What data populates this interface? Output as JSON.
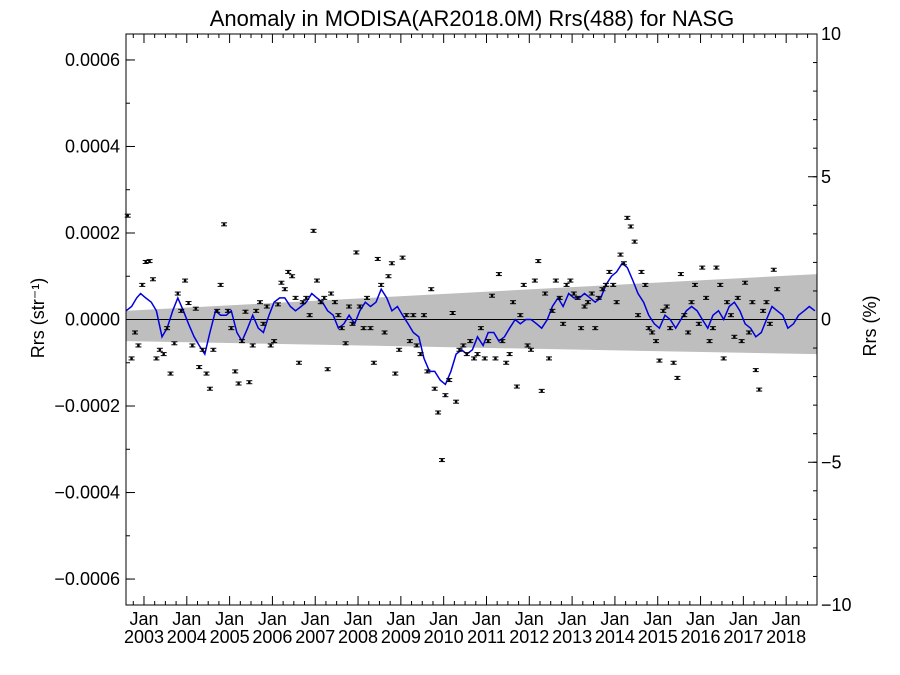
{
  "chart_data": {
    "type": "scatter",
    "title": "Anomaly in MODISA(AR2018.0M) Rrs(488) for NASG",
    "ylabel_left": "Rrs (str⁻¹)",
    "ylabel_right": "Rrs (%)",
    "ylim_left": [
      -0.00066,
      0.00066
    ],
    "ylim_right": [
      -10,
      10
    ],
    "xlim": [
      2002.58,
      2018.72
    ],
    "y_ticks_left": [
      {
        "value": 0.0006,
        "label": "0.0006"
      },
      {
        "value": 0.0004,
        "label": "0.0004"
      },
      {
        "value": 0.0002,
        "label": "0.0002"
      },
      {
        "value": 0.0,
        "label": "0.0000"
      },
      {
        "value": -0.0002,
        "label": "−0.0002"
      },
      {
        "value": -0.0004,
        "label": "−0.0004"
      },
      {
        "value": -0.0006,
        "label": "−0.0006"
      }
    ],
    "y_ticks_right": [
      {
        "value": 10,
        "label": "10"
      },
      {
        "value": 5,
        "label": "5"
      },
      {
        "value": 0,
        "label": "0"
      },
      {
        "value": -5,
        "label": "−5"
      },
      {
        "value": -10,
        "label": "−10"
      }
    ],
    "x_ticks": [
      {
        "value": 2003.0,
        "label": "Jan",
        "year": "2003"
      },
      {
        "value": 2004.0,
        "label": "Jan",
        "year": "2004"
      },
      {
        "value": 2005.0,
        "label": "Jan",
        "year": "2005"
      },
      {
        "value": 2006.0,
        "label": "Jan",
        "year": "2006"
      },
      {
        "value": 2007.0,
        "label": "Jan",
        "year": "2007"
      },
      {
        "value": 2008.0,
        "label": "Jan",
        "year": "2008"
      },
      {
        "value": 2009.0,
        "label": "Jan",
        "year": "2009"
      },
      {
        "value": 2010.0,
        "label": "Jan",
        "year": "2010"
      },
      {
        "value": 2011.0,
        "label": "Jan",
        "year": "2011"
      },
      {
        "value": 2012.0,
        "label": "Jan",
        "year": "2012"
      },
      {
        "value": 2013.0,
        "label": "Jan",
        "year": "2013"
      },
      {
        "value": 2014.0,
        "label": "Jan",
        "year": "2014"
      },
      {
        "value": 2015.0,
        "label": "Jan",
        "year": "2015"
      },
      {
        "value": 2016.0,
        "label": "Jan",
        "year": "2016"
      },
      {
        "value": 2017.0,
        "label": "Jan",
        "year": "2017"
      },
      {
        "value": 2018.0,
        "label": "Jan",
        "year": "2018"
      }
    ],
    "uncertainty_band": {
      "x": [
        2002.58,
        2018.72
      ],
      "upper": [
        2e-05,
        0.000105
      ],
      "lower": [
        -5e-05,
        -8e-05
      ],
      "color": "#bebebe"
    },
    "zero_line": 0.0,
    "points_color": "#000000",
    "line_color": "#0000dd",
    "points": [
      [
        2002.62,
        0.00024
      ],
      [
        2002.71,
        -9e-05
      ],
      [
        2002.79,
        -3e-05
      ],
      [
        2002.87,
        -6e-05
      ],
      [
        2002.96,
        8e-05
      ],
      [
        2003.04,
        0.000133
      ],
      [
        2003.13,
        0.000135
      ],
      [
        2003.21,
        9.3e-05
      ],
      [
        2003.29,
        -9e-05
      ],
      [
        2003.37,
        -7e-05
      ],
      [
        2003.46,
        -8e-05
      ],
      [
        2003.54,
        -2e-05
      ],
      [
        2003.62,
        -0.000125
      ],
      [
        2003.71,
        -5.5e-05
      ],
      [
        2003.79,
        6e-05
      ],
      [
        2003.87,
        2e-05
      ],
      [
        2003.96,
        9e-05
      ],
      [
        2004.04,
        3.8e-05
      ],
      [
        2004.13,
        -6e-05
      ],
      [
        2004.21,
        2.5e-05
      ],
      [
        2004.29,
        -0.00011
      ],
      [
        2004.37,
        -7e-05
      ],
      [
        2004.46,
        -0.000125
      ],
      [
        2004.54,
        -0.00016
      ],
      [
        2004.62,
        -7e-05
      ],
      [
        2004.71,
        2e-05
      ],
      [
        2004.79,
        8e-05
      ],
      [
        2004.87,
        0.00022
      ],
      [
        2004.96,
        2e-05
      ],
      [
        2005.04,
        -2e-05
      ],
      [
        2005.13,
        -0.00012
      ],
      [
        2005.21,
        -0.000148
      ],
      [
        2005.29,
        -5e-05
      ],
      [
        2005.37,
        1.8e-05
      ],
      [
        2005.46,
        -0.000145
      ],
      [
        2005.54,
        -6e-05
      ],
      [
        2005.62,
        2e-05
      ],
      [
        2005.71,
        4e-05
      ],
      [
        2005.79,
        -1e-05
      ],
      [
        2005.87,
        3e-05
      ],
      [
        2005.96,
        -6e-05
      ],
      [
        2006.04,
        -5e-05
      ],
      [
        2006.13,
        3.5e-05
      ],
      [
        2006.21,
        8.5e-05
      ],
      [
        2006.29,
        7e-05
      ],
      [
        2006.37,
        0.00011
      ],
      [
        2006.46,
        0.0001
      ],
      [
        2006.54,
        5e-05
      ],
      [
        2006.62,
        -0.0001
      ],
      [
        2006.71,
        4e-05
      ],
      [
        2006.79,
        5e-05
      ],
      [
        2006.87,
        1e-05
      ],
      [
        2006.96,
        0.000205
      ],
      [
        2007.04,
        9e-05
      ],
      [
        2007.13,
        4e-05
      ],
      [
        2007.21,
        5e-05
      ],
      [
        2007.29,
        -0.000115
      ],
      [
        2007.37,
        6e-05
      ],
      [
        2007.46,
        4e-05
      ],
      [
        2007.54,
        1e-05
      ],
      [
        2007.62,
        -2e-05
      ],
      [
        2007.71,
        -5.5e-05
      ],
      [
        2007.79,
        3e-05
      ],
      [
        2007.87,
        -1e-05
      ],
      [
        2007.96,
        0.000155
      ],
      [
        2008.04,
        3e-05
      ],
      [
        2008.13,
        -2e-05
      ],
      [
        2008.21,
        5e-05
      ],
      [
        2008.29,
        -2e-05
      ],
      [
        2008.37,
        -0.0001
      ],
      [
        2008.46,
        0.00014
      ],
      [
        2008.54,
        8e-05
      ],
      [
        2008.62,
        -3e-05
      ],
      [
        2008.71,
        0.0001
      ],
      [
        2008.79,
        0.00013
      ],
      [
        2008.87,
        -0.000125
      ],
      [
        2008.96,
        -7e-05
      ],
      [
        2009.04,
        0.000143
      ],
      [
        2009.13,
        1e-05
      ],
      [
        2009.21,
        -5e-05
      ],
      [
        2009.29,
        1e-05
      ],
      [
        2009.37,
        -6e-05
      ],
      [
        2009.46,
        -8e-05
      ],
      [
        2009.54,
        1e-05
      ],
      [
        2009.62,
        -0.00012
      ],
      [
        2009.71,
        7e-05
      ],
      [
        2009.79,
        -0.00016
      ],
      [
        2009.87,
        -0.000215
      ],
      [
        2009.96,
        -0.000325
      ],
      [
        2010.04,
        -0.000175
      ],
      [
        2010.13,
        -0.00014
      ],
      [
        2010.21,
        1.5e-05
      ],
      [
        2010.29,
        -0.00019
      ],
      [
        2010.37,
        -7e-05
      ],
      [
        2010.46,
        -6e-05
      ],
      [
        2010.54,
        -8e-05
      ],
      [
        2010.62,
        -5e-05
      ],
      [
        2010.71,
        -9e-05
      ],
      [
        2010.79,
        -8e-05
      ],
      [
        2010.87,
        -2e-05
      ],
      [
        2010.96,
        -9e-05
      ],
      [
        2011.04,
        -5e-05
      ],
      [
        2011.13,
        5.5e-05
      ],
      [
        2011.21,
        -9e-05
      ],
      [
        2011.29,
        0.000105
      ],
      [
        2011.37,
        -5e-05
      ],
      [
        2011.46,
        -0.0001
      ],
      [
        2011.54,
        -8e-05
      ],
      [
        2011.62,
        4e-05
      ],
      [
        2011.71,
        -0.000155
      ],
      [
        2011.79,
        1e-05
      ],
      [
        2011.87,
        8e-05
      ],
      [
        2011.96,
        -6e-05
      ],
      [
        2012.04,
        -7e-05
      ],
      [
        2012.13,
        9e-05
      ],
      [
        2012.21,
        0.000135
      ],
      [
        2012.29,
        -0.000165
      ],
      [
        2012.37,
        6e-05
      ],
      [
        2012.46,
        -9e-05
      ],
      [
        2012.54,
        2e-05
      ],
      [
        2012.62,
        9e-05
      ],
      [
        2012.71,
        5e-05
      ],
      [
        2012.79,
        -1e-05
      ],
      [
        2012.87,
        8e-05
      ],
      [
        2012.96,
        9e-05
      ],
      [
        2013.04,
        6e-05
      ],
      [
        2013.13,
        5e-05
      ],
      [
        2013.21,
        -2e-05
      ],
      [
        2013.29,
        3e-05
      ],
      [
        2013.37,
        4e-05
      ],
      [
        2013.46,
        6e-05
      ],
      [
        2013.54,
        -2e-05
      ],
      [
        2013.62,
        5e-05
      ],
      [
        2013.71,
        7e-05
      ],
      [
        2013.79,
        8e-05
      ],
      [
        2013.87,
        0.00011
      ],
      [
        2013.96,
        8e-05
      ],
      [
        2014.04,
        4e-05
      ],
      [
        2014.13,
        0.00015
      ],
      [
        2014.21,
        0.00013
      ],
      [
        2014.29,
        0.000235
      ],
      [
        2014.37,
        0.000215
      ],
      [
        2014.46,
        0.00018
      ],
      [
        2014.54,
        1e-05
      ],
      [
        2014.62,
        0.00011
      ],
      [
        2014.71,
        8e-05
      ],
      [
        2014.79,
        -2e-05
      ],
      [
        2014.87,
        -3e-05
      ],
      [
        2014.96,
        -5e-05
      ],
      [
        2015.04,
        -9.5e-05
      ],
      [
        2015.13,
        2e-05
      ],
      [
        2015.21,
        3e-05
      ],
      [
        2015.29,
        -2e-05
      ],
      [
        2015.37,
        -0.0001
      ],
      [
        2015.46,
        -0.000135
      ],
      [
        2015.54,
        0.000105
      ],
      [
        2015.62,
        1e-05
      ],
      [
        2015.71,
        -3e-05
      ],
      [
        2015.79,
        4e-05
      ],
      [
        2015.87,
        8e-05
      ],
      [
        2015.96,
        -1e-05
      ],
      [
        2016.04,
        0.00012
      ],
      [
        2016.13,
        5e-05
      ],
      [
        2016.21,
        -5e-05
      ],
      [
        2016.29,
        -2e-05
      ],
      [
        2016.37,
        0.00012
      ],
      [
        2016.46,
        8e-05
      ],
      [
        2016.54,
        -9e-05
      ],
      [
        2016.62,
        4e-05
      ],
      [
        2016.71,
        1e-05
      ],
      [
        2016.79,
        -4e-05
      ],
      [
        2016.87,
        5e-05
      ],
      [
        2016.96,
        -5e-05
      ],
      [
        2017.04,
        8.5e-05
      ],
      [
        2017.13,
        -3e-05
      ],
      [
        2017.21,
        4e-05
      ],
      [
        2017.29,
        -0.000117
      ],
      [
        2017.37,
        -0.000162
      ],
      [
        2017.46,
        2e-05
      ],
      [
        2017.54,
        4e-05
      ],
      [
        2017.62,
        -1e-05
      ],
      [
        2017.71,
        0.000115
      ],
      [
        2017.79,
        7e-05
      ]
    ],
    "line": [
      [
        2002.58,
        2e-05
      ],
      [
        2002.71,
        3e-05
      ],
      [
        2002.83,
        5e-05
      ],
      [
        2002.92,
        6e-05
      ],
      [
        2003.04,
        5e-05
      ],
      [
        2003.17,
        4e-05
      ],
      [
        2003.29,
        2e-05
      ],
      [
        2003.42,
        -4e-05
      ],
      [
        2003.54,
        -2e-05
      ],
      [
        2003.67,
        2e-05
      ],
      [
        2003.79,
        5e-05
      ],
      [
        2003.92,
        2e-05
      ],
      [
        2004.04,
        -1e-05
      ],
      [
        2004.17,
        -4e-05
      ],
      [
        2004.29,
        -6e-05
      ],
      [
        2004.42,
        -8e-05
      ],
      [
        2004.54,
        -3e-05
      ],
      [
        2004.67,
        2e-05
      ],
      [
        2004.79,
        1e-05
      ],
      [
        2004.92,
        1e-05
      ],
      [
        2005.04,
        2e-05
      ],
      [
        2005.17,
        -3e-05
      ],
      [
        2005.29,
        -5e-05
      ],
      [
        2005.42,
        -2e-05
      ],
      [
        2005.54,
        1e-05
      ],
      [
        2005.67,
        -2e-05
      ],
      [
        2005.79,
        -3e-05
      ],
      [
        2005.92,
        1e-05
      ],
      [
        2006.04,
        4e-05
      ],
      [
        2006.17,
        5e-05
      ],
      [
        2006.29,
        5e-05
      ],
      [
        2006.42,
        3e-05
      ],
      [
        2006.54,
        2e-05
      ],
      [
        2006.67,
        3e-05
      ],
      [
        2006.79,
        4e-05
      ],
      [
        2006.92,
        6e-05
      ],
      [
        2007.04,
        5e-05
      ],
      [
        2007.17,
        4e-05
      ],
      [
        2007.29,
        2e-05
      ],
      [
        2007.42,
        1e-05
      ],
      [
        2007.54,
        -2e-05
      ],
      [
        2007.67,
        -1e-05
      ],
      [
        2007.79,
        1e-05
      ],
      [
        2007.92,
        -1e-05
      ],
      [
        2008.04,
        2e-05
      ],
      [
        2008.17,
        4e-05
      ],
      [
        2008.29,
        3e-05
      ],
      [
        2008.42,
        4e-05
      ],
      [
        2008.54,
        7e-05
      ],
      [
        2008.67,
        5e-05
      ],
      [
        2008.79,
        2e-05
      ],
      [
        2008.92,
        3e-05
      ],
      [
        2009.04,
        1e-05
      ],
      [
        2009.17,
        -1e-05
      ],
      [
        2009.29,
        -3e-05
      ],
      [
        2009.42,
        -4e-05
      ],
      [
        2009.54,
        -9e-05
      ],
      [
        2009.67,
        -0.00012
      ],
      [
        2009.79,
        -0.00012
      ],
      [
        2009.92,
        -0.00014
      ],
      [
        2010.04,
        -0.00015
      ],
      [
        2010.17,
        -0.00012
      ],
      [
        2010.29,
        -8e-05
      ],
      [
        2010.42,
        -7e-05
      ],
      [
        2010.54,
        -8e-05
      ],
      [
        2010.67,
        -7e-05
      ],
      [
        2010.79,
        -4e-05
      ],
      [
        2010.92,
        -6e-05
      ],
      [
        2011.04,
        -3e-05
      ],
      [
        2011.17,
        -3e-05
      ],
      [
        2011.29,
        -5e-05
      ],
      [
        2011.42,
        -4e-05
      ],
      [
        2011.54,
        -2e-05
      ],
      [
        2011.67,
        0.0
      ],
      [
        2011.79,
        -1e-05
      ],
      [
        2011.92,
        0.0
      ],
      [
        2012.04,
        0.0
      ],
      [
        2012.17,
        -1e-05
      ],
      [
        2012.29,
        -2e-05
      ],
      [
        2012.42,
        0.0
      ],
      [
        2012.54,
        3e-05
      ],
      [
        2012.67,
        5e-05
      ],
      [
        2012.79,
        3e-05
      ],
      [
        2012.92,
        6e-05
      ],
      [
        2013.04,
        5e-05
      ],
      [
        2013.17,
        5e-05
      ],
      [
        2013.29,
        6e-05
      ],
      [
        2013.42,
        5e-05
      ],
      [
        2013.54,
        4e-05
      ],
      [
        2013.67,
        5e-05
      ],
      [
        2013.79,
        8e-05
      ],
      [
        2013.92,
        0.0001
      ],
      [
        2014.04,
        0.00011
      ],
      [
        2014.17,
        0.00013
      ],
      [
        2014.29,
        0.00012
      ],
      [
        2014.42,
        9e-05
      ],
      [
        2014.54,
        6e-05
      ],
      [
        2014.67,
        4e-05
      ],
      [
        2014.79,
        1e-05
      ],
      [
        2014.92,
        -1e-05
      ],
      [
        2015.04,
        -2e-05
      ],
      [
        2015.17,
        1e-05
      ],
      [
        2015.29,
        0.0
      ],
      [
        2015.42,
        -2e-05
      ],
      [
        2015.54,
        0.0
      ],
      [
        2015.67,
        2e-05
      ],
      [
        2015.79,
        3e-05
      ],
      [
        2015.92,
        2e-05
      ],
      [
        2016.04,
        0.0
      ],
      [
        2016.17,
        -2e-05
      ],
      [
        2016.29,
        1e-05
      ],
      [
        2016.42,
        2e-05
      ],
      [
        2016.54,
        0.0
      ],
      [
        2016.67,
        3e-05
      ],
      [
        2016.79,
        4e-05
      ],
      [
        2016.92,
        2e-05
      ],
      [
        2017.04,
        -1e-05
      ],
      [
        2017.17,
        -2e-05
      ],
      [
        2017.29,
        -4e-05
      ],
      [
        2017.42,
        -3e-05
      ],
      [
        2017.54,
        0.0
      ],
      [
        2017.67,
        3e-05
      ],
      [
        2017.79,
        2e-05
      ],
      [
        2017.92,
        1e-05
      ],
      [
        2018.04,
        -2e-05
      ],
      [
        2018.17,
        -1e-05
      ],
      [
        2018.29,
        1e-05
      ],
      [
        2018.42,
        2e-05
      ],
      [
        2018.54,
        3e-05
      ],
      [
        2018.67,
        2e-05
      ]
    ]
  }
}
